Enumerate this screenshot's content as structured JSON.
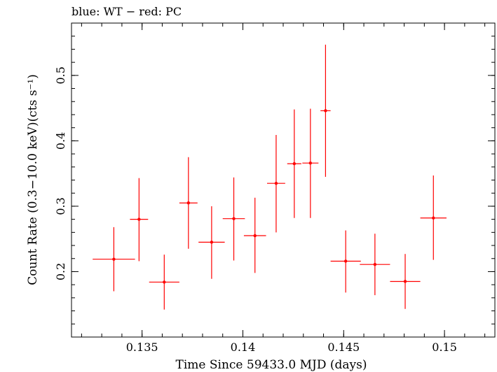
{
  "chart_data": {
    "type": "scatter",
    "title": "blue: WT − red: PC",
    "xlabel": "Time Since 59433.0 MJD (days)",
    "ylabel": "Count Rate (0.3−10.0 keV)(cts s⁻¹)",
    "xlim": [
      0.1315,
      0.1525
    ],
    "ylim": [
      0.1,
      0.58
    ],
    "xticks": [
      {
        "value": 0.135,
        "label": "0.135"
      },
      {
        "value": 0.14,
        "label": "0.14"
      },
      {
        "value": 0.145,
        "label": "0.145"
      },
      {
        "value": 0.15,
        "label": "0.15"
      }
    ],
    "yticks": [
      {
        "value": 0.2,
        "label": "0.2"
      },
      {
        "value": 0.3,
        "label": "0.3"
      },
      {
        "value": 0.4,
        "label": "0.4"
      },
      {
        "value": 0.5,
        "label": "0.5"
      }
    ],
    "x_minor_step": 0.001,
    "y_minor_step": 0.02,
    "grid": false,
    "series": [
      {
        "name": "PC",
        "color": "#ff0000",
        "points": [
          {
            "x": 0.1336,
            "y": 0.219,
            "xerr": 0.00105,
            "ylo": 0.17,
            "yhi": 0.268
          },
          {
            "x": 0.13485,
            "y": 0.28,
            "xerr": 0.00045,
            "ylo": 0.216,
            "yhi": 0.343
          },
          {
            "x": 0.1361,
            "y": 0.184,
            "xerr": 0.00075,
            "ylo": 0.142,
            "yhi": 0.226
          },
          {
            "x": 0.1373,
            "y": 0.305,
            "xerr": 0.00045,
            "ylo": 0.235,
            "yhi": 0.375
          },
          {
            "x": 0.13845,
            "y": 0.245,
            "xerr": 0.00065,
            "ylo": 0.189,
            "yhi": 0.3
          },
          {
            "x": 0.13955,
            "y": 0.281,
            "xerr": 0.00055,
            "ylo": 0.217,
            "yhi": 0.344
          },
          {
            "x": 0.1406,
            "y": 0.255,
            "xerr": 0.00055,
            "ylo": 0.198,
            "yhi": 0.313
          },
          {
            "x": 0.14165,
            "y": 0.335,
            "xerr": 0.00045,
            "ylo": 0.26,
            "yhi": 0.409
          },
          {
            "x": 0.14255,
            "y": 0.365,
            "xerr": 0.00035,
            "ylo": 0.282,
            "yhi": 0.448
          },
          {
            "x": 0.14335,
            "y": 0.366,
            "xerr": 0.0004,
            "ylo": 0.282,
            "yhi": 0.449
          },
          {
            "x": 0.1441,
            "y": 0.446,
            "xerr": 0.00025,
            "ylo": 0.345,
            "yhi": 0.547
          },
          {
            "x": 0.1451,
            "y": 0.216,
            "xerr": 0.00075,
            "ylo": 0.168,
            "yhi": 0.263
          },
          {
            "x": 0.14655,
            "y": 0.211,
            "xerr": 0.00075,
            "ylo": 0.164,
            "yhi": 0.258
          },
          {
            "x": 0.14805,
            "y": 0.185,
            "xerr": 0.00075,
            "ylo": 0.143,
            "yhi": 0.227
          },
          {
            "x": 0.14945,
            "y": 0.282,
            "xerr": 0.00065,
            "ylo": 0.218,
            "yhi": 0.347
          }
        ]
      }
    ]
  }
}
